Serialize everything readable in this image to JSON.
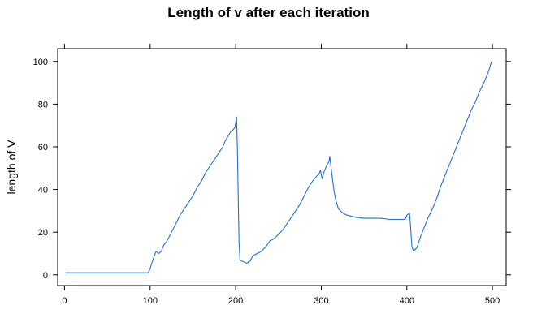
{
  "chart_data": {
    "type": "line",
    "title": "Length of v after each iteration",
    "xlabel": "",
    "ylabel": "length of V",
    "xlim": [
      -8,
      516
    ],
    "ylim": [
      -5,
      106
    ],
    "xticks": [
      0,
      100,
      200,
      300,
      400,
      500
    ],
    "yticks": [
      0,
      20,
      40,
      60,
      80,
      100
    ],
    "grid": false,
    "legend": "none",
    "line_color": "#1f6fe0",
    "series": [
      {
        "points": [
          [
            1,
            1
          ],
          [
            50,
            1
          ],
          [
            98,
            1
          ],
          [
            100,
            3
          ],
          [
            104,
            8
          ],
          [
            107,
            11
          ],
          [
            110,
            10
          ],
          [
            113,
            11
          ],
          [
            116,
            14
          ],
          [
            120,
            16
          ],
          [
            125,
            20
          ],
          [
            130,
            24
          ],
          [
            135,
            28
          ],
          [
            140,
            31
          ],
          [
            145,
            34
          ],
          [
            150,
            37
          ],
          [
            155,
            41
          ],
          [
            160,
            44
          ],
          [
            165,
            48
          ],
          [
            170,
            51
          ],
          [
            175,
            54
          ],
          [
            180,
            57
          ],
          [
            185,
            60
          ],
          [
            188,
            63
          ],
          [
            191,
            65
          ],
          [
            194,
            67
          ],
          [
            197,
            68
          ],
          [
            199,
            69
          ],
          [
            201,
            74
          ],
          [
            202,
            60
          ],
          [
            203,
            35
          ],
          [
            204,
            15
          ],
          [
            205,
            7
          ],
          [
            207,
            6.5
          ],
          [
            210,
            6
          ],
          [
            213,
            5.5
          ],
          [
            217,
            6.5
          ],
          [
            220,
            9
          ],
          [
            225,
            10
          ],
          [
            230,
            11
          ],
          [
            235,
            13
          ],
          [
            240,
            16
          ],
          [
            245,
            17
          ],
          [
            250,
            19
          ],
          [
            255,
            21
          ],
          [
            260,
            24
          ],
          [
            265,
            27
          ],
          [
            270,
            30
          ],
          [
            275,
            33
          ],
          [
            280,
            37
          ],
          [
            285,
            41
          ],
          [
            290,
            44
          ],
          [
            294,
            46
          ],
          [
            297,
            47
          ],
          [
            299,
            49
          ],
          [
            301,
            45
          ],
          [
            303,
            48
          ],
          [
            306,
            51
          ],
          [
            309,
            53
          ],
          [
            310,
            55.5
          ],
          [
            311,
            52
          ],
          [
            313,
            45
          ],
          [
            315,
            39
          ],
          [
            317,
            35
          ],
          [
            320,
            31
          ],
          [
            325,
            29
          ],
          [
            330,
            28
          ],
          [
            340,
            27
          ],
          [
            350,
            26.5
          ],
          [
            360,
            26.5
          ],
          [
            370,
            26.5
          ],
          [
            380,
            26
          ],
          [
            395,
            26
          ],
          [
            398,
            26
          ],
          [
            400,
            28
          ],
          [
            403,
            29
          ],
          [
            404,
            25
          ],
          [
            405,
            18
          ],
          [
            406,
            13
          ],
          [
            408,
            11
          ],
          [
            412,
            13
          ],
          [
            416,
            18
          ],
          [
            420,
            22
          ],
          [
            425,
            27
          ],
          [
            430,
            31
          ],
          [
            435,
            36
          ],
          [
            440,
            42
          ],
          [
            445,
            47
          ],
          [
            450,
            52
          ],
          [
            455,
            57
          ],
          [
            460,
            62
          ],
          [
            465,
            67
          ],
          [
            470,
            72
          ],
          [
            475,
            77
          ],
          [
            480,
            81
          ],
          [
            485,
            86
          ],
          [
            490,
            90
          ],
          [
            495,
            95
          ],
          [
            499,
            100
          ]
        ]
      }
    ]
  }
}
